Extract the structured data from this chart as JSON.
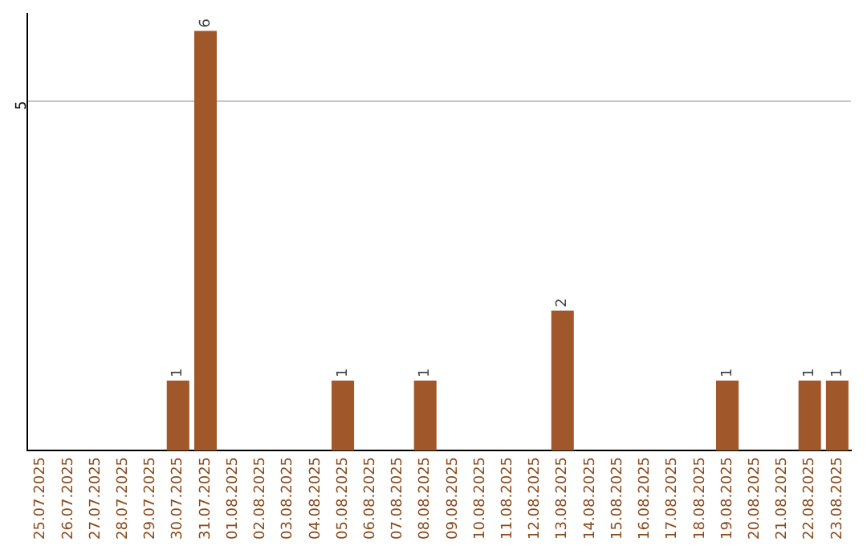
{
  "chart_data": {
    "type": "bar",
    "categories": [
      "25.07.2025",
      "26.07.2025",
      "27.07.2025",
      "28.07.2025",
      "29.07.2025",
      "30.07.2025",
      "31.07.2025",
      "01.08.2025",
      "02.08.2025",
      "03.08.2025",
      "04.08.2025",
      "05.08.2025",
      "06.08.2025",
      "07.08.2025",
      "08.08.2025",
      "09.08.2025",
      "10.08.2025",
      "11.08.2025",
      "12.08.2025",
      "13.08.2025",
      "14.08.2025",
      "15.08.2025",
      "16.08.2025",
      "17.08.2025",
      "18.08.2025",
      "19.08.2025",
      "20.08.2025",
      "21.08.2025",
      "22.08.2025",
      "23.08.2025"
    ],
    "values": [
      0,
      0,
      0,
      0,
      0,
      1,
      6,
      0,
      0,
      0,
      0,
      1,
      0,
      0,
      1,
      0,
      0,
      0,
      0,
      2,
      0,
      0,
      0,
      0,
      0,
      1,
      0,
      0,
      1,
      1
    ],
    "value_labels": [
      null,
      null,
      null,
      null,
      null,
      "1",
      "6",
      null,
      null,
      null,
      null,
      "1",
      null,
      null,
      "1",
      null,
      null,
      null,
      null,
      "2",
      null,
      null,
      null,
      null,
      null,
      "1",
      null,
      null,
      "1",
      "1"
    ],
    "color": "#a0582a",
    "ylim": [
      0,
      6.25
    ],
    "yticks": [
      5
    ],
    "grid": "y"
  }
}
